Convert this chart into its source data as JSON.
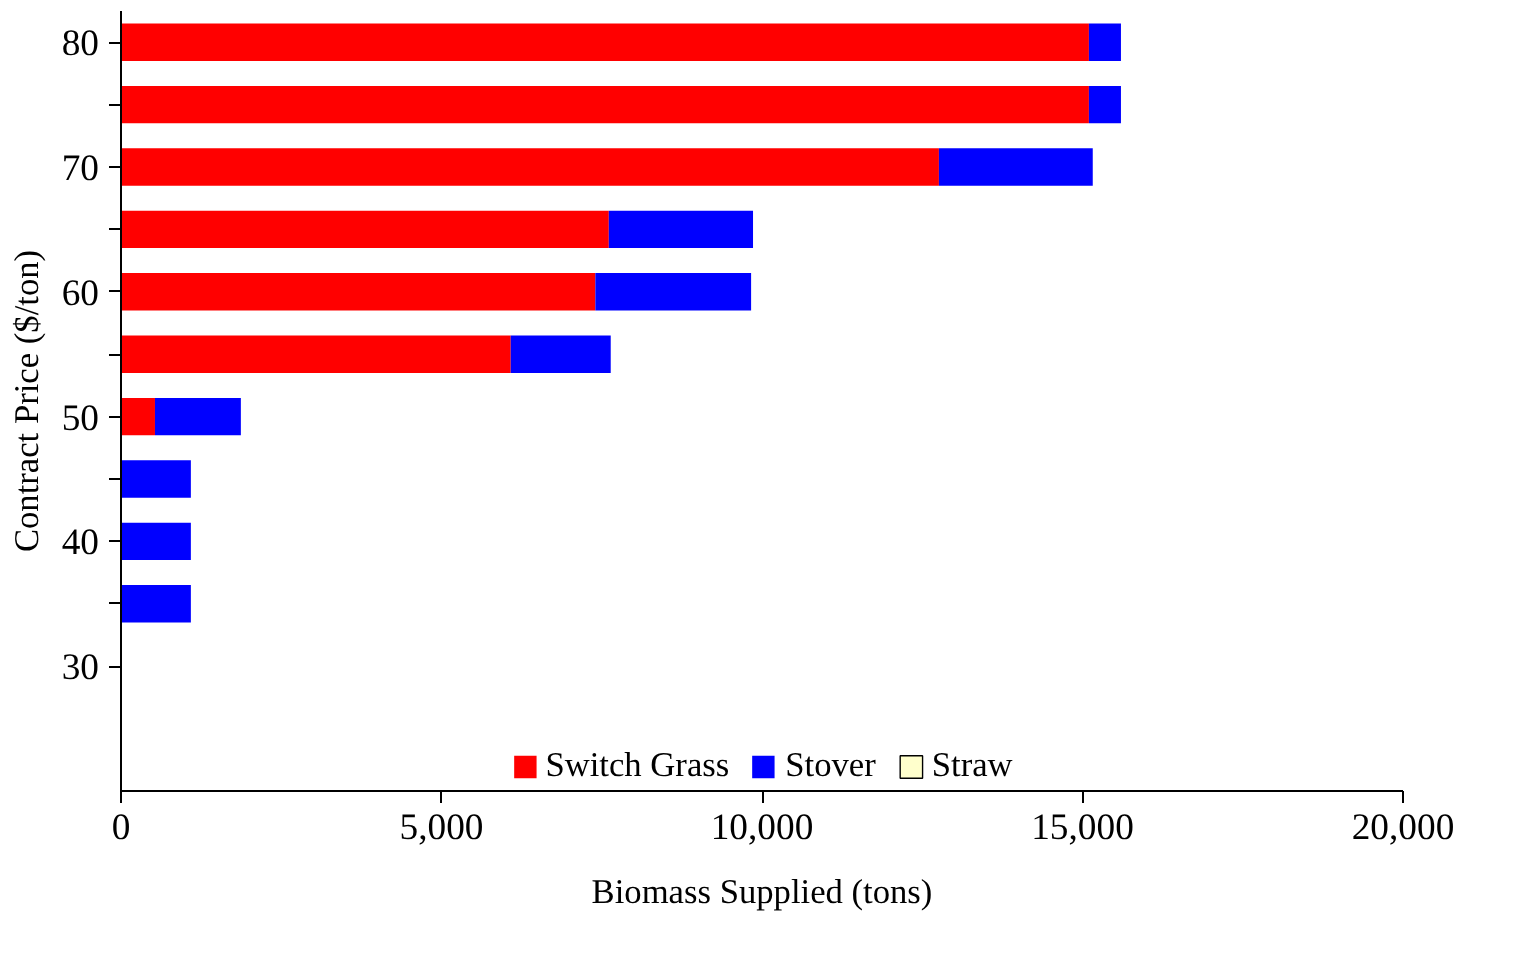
{
  "chart_data": {
    "type": "bar",
    "orientation": "horizontal",
    "stacked": true,
    "xlabel": "Biomass Supplied (tons)",
    "ylabel": "Contract Price ($/ton)",
    "categories": [
      "80",
      null,
      "70",
      null,
      "60",
      null,
      "50",
      null,
      "40",
      null,
      "30"
    ],
    "series": [
      {
        "name": "Switch Grass",
        "color": "#ff0000",
        "values": [
          15100,
          15100,
          12760,
          7610,
          7400,
          6080,
          530,
          null,
          null,
          null,
          null
        ]
      },
      {
        "name": "Stover",
        "color": "#0000ff",
        "values": [
          500,
          500,
          2400,
          2250,
          2430,
          1560,
          1340,
          1090,
          1090,
          1090,
          null
        ]
      },
      {
        "name": "Straw",
        "color": "#ffffcc",
        "values": [
          null,
          null,
          null,
          null,
          null,
          null,
          null,
          null,
          null,
          null,
          null
        ]
      }
    ],
    "xlim": [
      0,
      20000
    ],
    "xticks": [
      0,
      {
        "value": 5000,
        "label": "5,000"
      },
      {
        "value": 10000,
        "label": "10,000"
      },
      {
        "value": 15000,
        "label": "15,000"
      },
      {
        "value": 20000,
        "label": "20,000"
      }
    ],
    "legend": "bottom"
  }
}
